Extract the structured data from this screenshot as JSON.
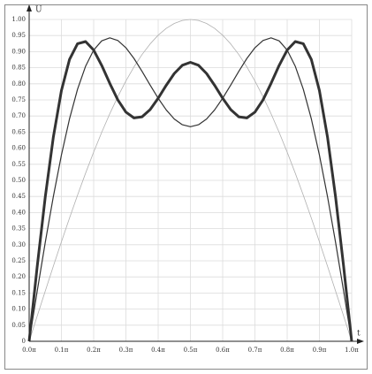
{
  "chart_data": {
    "type": "line",
    "y_label": "U",
    "x_label": "t",
    "x": [
      0,
      0.025,
      0.05,
      0.075,
      0.1,
      0.125,
      0.15,
      0.175,
      0.2,
      0.225,
      0.25,
      0.275,
      0.3,
      0.325,
      0.35,
      0.375,
      0.4,
      0.425,
      0.45,
      0.475,
      0.5,
      0.525,
      0.55,
      0.575,
      0.6,
      0.625,
      0.65,
      0.675,
      0.7,
      0.725,
      0.75,
      0.775,
      0.8,
      0.825,
      0.85,
      0.875,
      0.9,
      0.925,
      0.95,
      0.975,
      1
    ],
    "series": [
      {
        "color": "#b0b0b0",
        "linewidth": 0.8,
        "values": [
          0,
          0.0785,
          0.1564,
          0.2334,
          0.309,
          0.3827,
          0.454,
          0.5225,
          0.5878,
          0.6494,
          0.7071,
          0.7604,
          0.809,
          0.8526,
          0.891,
          0.9239,
          0.9511,
          0.9724,
          0.9877,
          0.9969,
          1,
          0.9969,
          0.9877,
          0.9724,
          0.9511,
          0.9239,
          0.891,
          0.8526,
          0.809,
          0.7604,
          0.7071,
          0.6494,
          0.5878,
          0.5225,
          0.454,
          0.3827,
          0.309,
          0.2334,
          0.1564,
          0.0785,
          0
        ]
      },
      {
        "color": "#333333",
        "linewidth": 1.2,
        "values": [
          0,
          0.1563,
          0.3077,
          0.4499,
          0.5787,
          0.6907,
          0.7832,
          0.8548,
          0.9048,
          0.9336,
          0.9428,
          0.9346,
          0.912,
          0.8788,
          0.8389,
          0.7963,
          0.7552,
          0.7189,
          0.6907,
          0.6728,
          0.6667,
          0.6728,
          0.6907,
          0.7189,
          0.7552,
          0.7963,
          0.8389,
          0.8788,
          0.912,
          0.9346,
          0.9428,
          0.9336,
          0.9048,
          0.8548,
          0.7832,
          0.6907,
          0.5787,
          0.4499,
          0.3077,
          0.1563,
          0
        ]
      },
      {
        "color": "#333333",
        "linewidth": 3,
        "values": [
          0,
          0.2328,
          0.4491,
          0.6347,
          0.7787,
          0.8755,
          0.9246,
          0.9313,
          0.9048,
          0.8571,
          0.8014,
          0.7498,
          0.712,
          0.694,
          0.6975,
          0.7198,
          0.7552,
          0.7954,
          0.8321,
          0.8576,
          0.8667,
          0.8576,
          0.8321,
          0.7954,
          0.7552,
          0.7198,
          0.6975,
          0.694,
          0.712,
          0.7498,
          0.8014,
          0.8571,
          0.9048,
          0.9313,
          0.9246,
          0.8755,
          0.7787,
          0.6347,
          0.4491,
          0.2328,
          0
        ]
      }
    ],
    "xlim": [
      0,
      1
    ],
    "ylim": [
      0,
      1
    ],
    "xticks": [
      {
        "value": 0,
        "label": "0.0π"
      },
      {
        "value": 0.1,
        "label": "0.1π"
      },
      {
        "value": 0.2,
        "label": "0.2π"
      },
      {
        "value": 0.3,
        "label": "0.3π"
      },
      {
        "value": 0.4,
        "label": "0.4π"
      },
      {
        "value": 0.5,
        "label": "0.5π"
      },
      {
        "value": 0.6,
        "label": "0.6π"
      },
      {
        "value": 0.7,
        "label": "0.7π"
      },
      {
        "value": 0.8,
        "label": "0.8π"
      },
      {
        "value": 0.9,
        "label": "0.9π"
      },
      {
        "value": 1,
        "label": "1.0π"
      }
    ],
    "yticks": [
      0,
      0.05,
      {
        "value": 0.1,
        "label": "0.10"
      },
      0.15,
      {
        "value": 0.2,
        "label": "0.20"
      },
      0.25,
      {
        "value": 0.3,
        "label": "0.30"
      },
      0.35,
      {
        "value": 0.4,
        "label": "0.40"
      },
      0.45,
      {
        "value": 0.5,
        "label": "0.50"
      },
      0.55,
      {
        "value": 0.6,
        "label": "0.60"
      },
      0.65,
      {
        "value": 0.7,
        "label": "0.70"
      },
      0.75,
      {
        "value": 0.8,
        "label": "0.80"
      },
      0.85,
      {
        "value": 0.9,
        "label": "0.90"
      },
      0.95,
      {
        "value": 1,
        "label": "1.00"
      }
    ],
    "grid": true
  }
}
